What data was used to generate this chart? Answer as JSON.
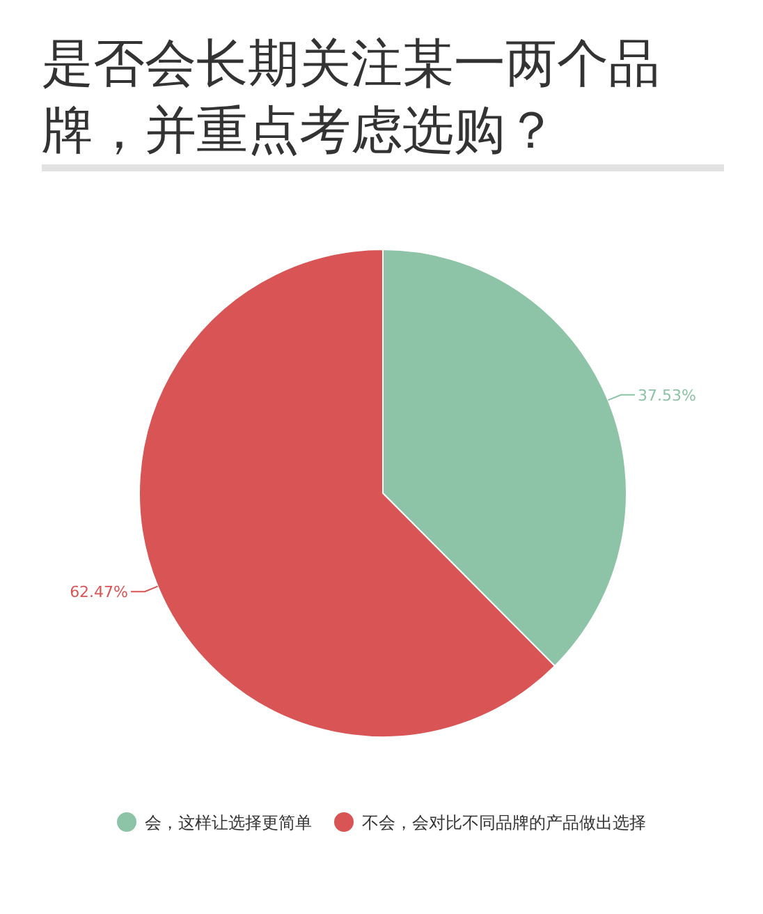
{
  "chart_data": {
    "type": "pie",
    "title": "是否会长期关注某一两个品牌，并重点考虑选购？",
    "categories": [
      "会，这样让选择更简单",
      "不会，会对比不同品牌的产品做出选择"
    ],
    "values": [
      37.53,
      62.47
    ],
    "colors": [
      "#8dc3a7",
      "#d95555"
    ],
    "value_labels": [
      "37.53%",
      "62.47%"
    ],
    "legend": "bottom"
  }
}
